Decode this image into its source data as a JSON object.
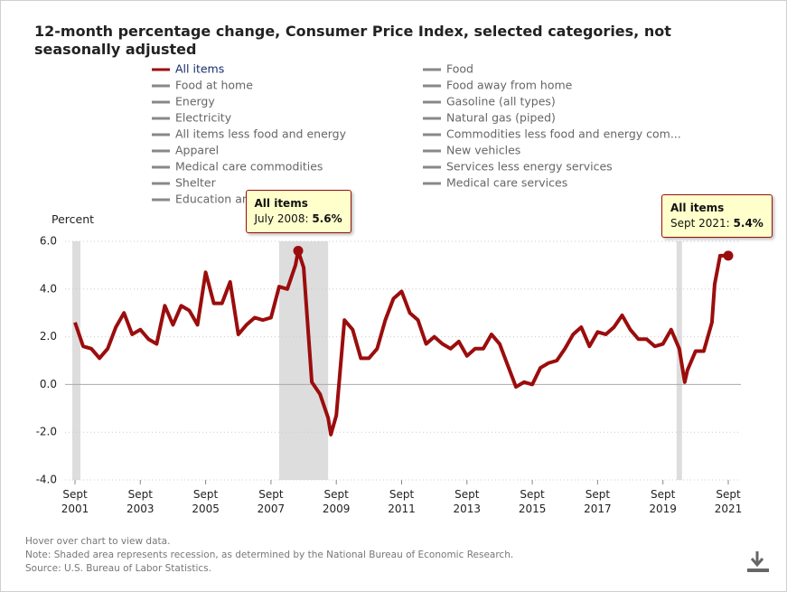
{
  "chart_data": {
    "type": "line",
    "title": "12-month percentage change, Consumer Price Index, selected categories, not seasonally adjusted",
    "y_label": "Percent",
    "x": [
      "2001-09",
      "2001-12",
      "2002-03",
      "2002-06",
      "2002-09",
      "2002-12",
      "2003-03",
      "2003-06",
      "2003-09",
      "2003-12",
      "2004-03",
      "2004-06",
      "2004-09",
      "2004-12",
      "2005-03",
      "2005-06",
      "2005-09",
      "2005-12",
      "2006-03",
      "2006-06",
      "2006-09",
      "2006-12",
      "2007-03",
      "2007-06",
      "2007-09",
      "2007-12",
      "2008-03",
      "2008-06",
      "2008-07",
      "2008-09",
      "2008-12",
      "2009-03",
      "2009-06",
      "2009-07",
      "2009-09",
      "2009-12",
      "2010-03",
      "2010-06",
      "2010-09",
      "2010-12",
      "2011-03",
      "2011-06",
      "2011-09",
      "2011-12",
      "2012-03",
      "2012-06",
      "2012-09",
      "2012-12",
      "2013-03",
      "2013-06",
      "2013-09",
      "2013-12",
      "2014-03",
      "2014-06",
      "2014-09",
      "2014-12",
      "2015-03",
      "2015-06",
      "2015-09",
      "2015-12",
      "2016-03",
      "2016-06",
      "2016-09",
      "2016-12",
      "2017-03",
      "2017-06",
      "2017-09",
      "2017-12",
      "2018-03",
      "2018-06",
      "2018-09",
      "2018-12",
      "2019-03",
      "2019-06",
      "2019-09",
      "2019-12",
      "2020-03",
      "2020-05",
      "2020-06",
      "2020-09",
      "2020-12",
      "2021-03",
      "2021-04",
      "2021-06",
      "2021-09"
    ],
    "series": [
      {
        "name": "All items",
        "color": "#9b0d0d",
        "values": [
          2.6,
          1.6,
          1.5,
          1.1,
          1.5,
          2.4,
          3.0,
          2.1,
          2.3,
          1.9,
          1.7,
          3.3,
          2.5,
          3.3,
          3.1,
          2.5,
          4.7,
          3.4,
          3.4,
          4.3,
          2.1,
          2.5,
          2.8,
          2.7,
          2.8,
          4.1,
          4.0,
          5.0,
          5.6,
          4.9,
          0.1,
          -0.4,
          -1.4,
          -2.1,
          -1.3,
          2.7,
          2.3,
          1.1,
          1.1,
          1.5,
          2.7,
          3.6,
          3.9,
          3.0,
          2.7,
          1.7,
          2.0,
          1.7,
          1.5,
          1.8,
          1.2,
          1.5,
          1.5,
          2.1,
          1.7,
          0.8,
          -0.1,
          0.1,
          0.0,
          0.7,
          0.9,
          1.0,
          1.5,
          2.1,
          2.4,
          1.6,
          2.2,
          2.1,
          2.4,
          2.9,
          2.3,
          1.9,
          1.9,
          1.6,
          1.7,
          2.3,
          1.5,
          0.1,
          0.6,
          1.4,
          1.4,
          2.6,
          4.2,
          5.4,
          5.4
        ]
      }
    ],
    "other_categories": [
      "Food",
      "Food at home",
      "Food away from home",
      "Energy",
      "Gasoline (all types)",
      "Electricity",
      "Natural gas (piped)",
      "All items less food and energy",
      "Commodities less food and energy com...",
      "Apparel",
      "New vehicles",
      "Medical care commodities",
      "Services less energy services",
      "Shelter",
      "Medical care services",
      "Education and"
    ],
    "other_color": "#888888",
    "xlim": [
      "2001-09",
      "2021-09"
    ],
    "xticks": [
      {
        "value": "2001-09",
        "label": "Sept\n2001"
      },
      {
        "value": "2003-09",
        "label": "Sept\n2003"
      },
      {
        "value": "2005-09",
        "label": "Sept\n2005"
      },
      {
        "value": "2007-09",
        "label": "Sept\n2007"
      },
      {
        "value": "2009-09",
        "label": "Sept\n2009"
      },
      {
        "value": "2011-09",
        "label": "Sept\n2011"
      },
      {
        "value": "2013-09",
        "label": "Sept\n2013"
      },
      {
        "value": "2015-09",
        "label": "Sept\n2015"
      },
      {
        "value": "2017-09",
        "label": "Sept\n2017"
      },
      {
        "value": "2019-09",
        "label": "Sept\n2019"
      },
      {
        "value": "2021-09",
        "label": "Sept\n2021"
      }
    ],
    "ylim": [
      -4,
      6
    ],
    "yticks": [
      {
        "value": -4,
        "label": "-4.0"
      },
      {
        "value": -2,
        "label": "-2.0"
      },
      {
        "value": 0,
        "label": "0.0"
      },
      {
        "value": 2,
        "label": "2.0"
      },
      {
        "value": 4,
        "label": "4.0"
      },
      {
        "value": 6,
        "label": "6.0"
      }
    ],
    "grid": true,
    "recessions": [
      [
        "2001-08",
        "2001-11"
      ],
      [
        "2007-12",
        "2009-06"
      ],
      [
        "2020-02",
        "2020-04"
      ]
    ],
    "recession_color": "#dddddd",
    "annotations": [
      {
        "title": "All items",
        "x": "2008-07",
        "date": "July 2008:",
        "value_label": "5.6%"
      },
      {
        "title": "All items",
        "x": "2021-09",
        "date": "Sept 2021:",
        "value_label": "5.4%"
      }
    ],
    "notes": [
      "Hover over chart to view data.",
      "Note: Shaded area represents recession, as determined by the National Bureau of Economic Research.",
      "Source: U.S. Bureau of Labor Statistics."
    ]
  }
}
